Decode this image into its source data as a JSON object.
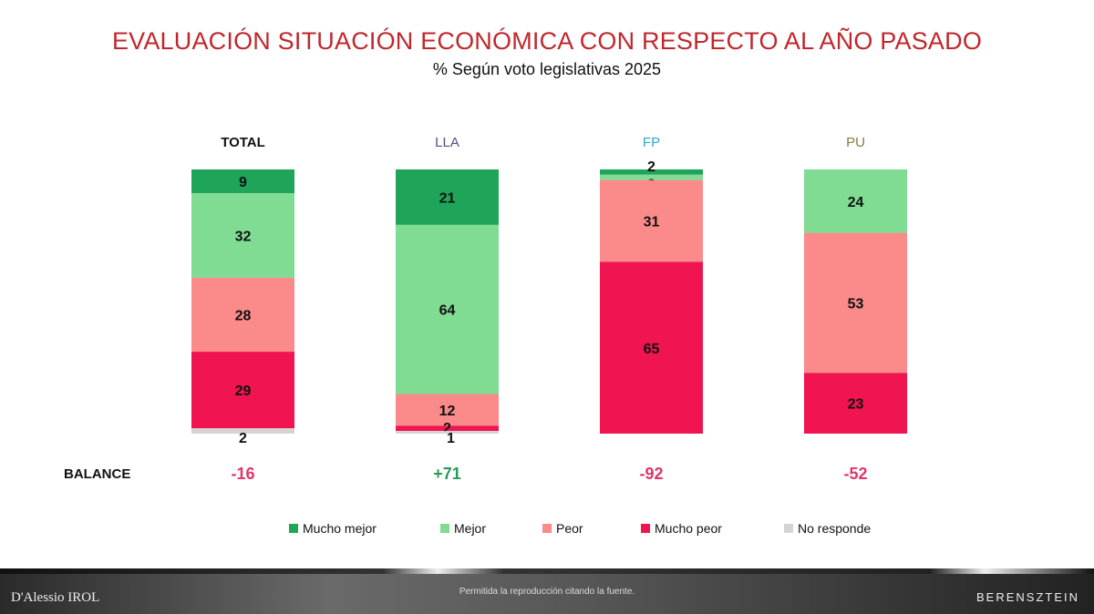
{
  "chart_data": {
    "type": "stacked-bar",
    "title": "EVALUACIÓN SITUACIÓN ECONÓMICA CON RESPECTO AL AÑO PASADO",
    "subtitle": "% Según voto legislativas 2025",
    "categories": [
      "TOTAL",
      "LLA",
      "FP",
      "PU"
    ],
    "category_colors": [
      "#111111",
      "#5b4a8c",
      "#29a8cc",
      "#8a7b3c"
    ],
    "ylim": [
      0,
      100
    ],
    "series": [
      {
        "name": "Mucho mejor",
        "color": "#1ea55a",
        "values": [
          9,
          21,
          2,
          0
        ]
      },
      {
        "name": "Mejor",
        "color": "#80dc92",
        "values": [
          32,
          64,
          2,
          24
        ]
      },
      {
        "name": "Peor",
        "color": "#fb8a8a",
        "values": [
          28,
          12,
          31,
          53
        ]
      },
      {
        "name": "Mucho peor",
        "color": "#f01450",
        "values": [
          29,
          2,
          65,
          23
        ]
      },
      {
        "name": "No responde",
        "color": "#d4d4d4",
        "values": [
          2,
          1,
          0,
          0
        ]
      }
    ],
    "balance_label": "BALANCE",
    "balance": [
      "-16",
      "+71",
      "-92",
      "-52"
    ],
    "balance_colors": [
      "#e0356a",
      "#2a9a5a",
      "#e0356a",
      "#e0356a"
    ],
    "legend_position": "bottom"
  },
  "footer": {
    "left_logo": "D'Alessio IROL",
    "note": "Permitida la reproducción citando la fuente.",
    "right_logo": "BERENSZTEIN"
  }
}
